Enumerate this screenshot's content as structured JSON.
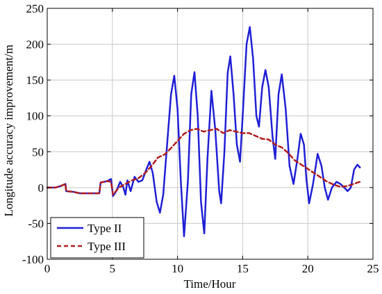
{
  "chart_data": {
    "type": "line",
    "xlabel": "Time/Hour",
    "ylabel": "Longitude accuracy improvement/m",
    "xlim": [
      0,
      25
    ],
    "ylim": [
      -100,
      250
    ],
    "xticks": [
      0,
      5,
      10,
      15,
      20,
      25
    ],
    "yticks": [
      -100,
      -50,
      0,
      50,
      100,
      150,
      200,
      250
    ],
    "grid": true,
    "legend_position": "bottom-left",
    "series": [
      {
        "name": "Type II",
        "color": "#1f1fd6",
        "style": "solid",
        "points": [
          [
            0,
            0
          ],
          [
            0.6,
            0
          ],
          [
            1.0,
            2
          ],
          [
            1.4,
            5
          ],
          [
            1.45,
            -5
          ],
          [
            2.0,
            -6
          ],
          [
            2.5,
            -8
          ],
          [
            3.0,
            -8
          ],
          [
            3.5,
            -8
          ],
          [
            4.0,
            -8
          ],
          [
            4.1,
            7
          ],
          [
            4.6,
            9
          ],
          [
            4.9,
            12
          ],
          [
            5.05,
            -12
          ],
          [
            5.3,
            -5
          ],
          [
            5.6,
            8
          ],
          [
            5.85,
            0
          ],
          [
            6.0,
            -10
          ],
          [
            6.15,
            10
          ],
          [
            6.4,
            -5
          ],
          [
            6.7,
            15
          ],
          [
            7.0,
            8
          ],
          [
            7.3,
            10
          ],
          [
            7.6,
            25
          ],
          [
            7.85,
            36
          ],
          [
            8.1,
            20
          ],
          [
            8.4,
            -20
          ],
          [
            8.65,
            -35
          ],
          [
            8.9,
            -10
          ],
          [
            9.2,
            60
          ],
          [
            9.5,
            130
          ],
          [
            9.75,
            156
          ],
          [
            10.0,
            110
          ],
          [
            10.25,
            10
          ],
          [
            10.5,
            -68
          ],
          [
            10.8,
            10
          ],
          [
            11.05,
            130
          ],
          [
            11.3,
            161
          ],
          [
            11.55,
            100
          ],
          [
            11.8,
            -20
          ],
          [
            12.05,
            -64
          ],
          [
            12.3,
            40
          ],
          [
            12.6,
            135
          ],
          [
            12.9,
            80
          ],
          [
            13.2,
            -5
          ],
          [
            13.35,
            -22
          ],
          [
            13.6,
            50
          ],
          [
            13.85,
            160
          ],
          [
            14.05,
            183
          ],
          [
            14.3,
            130
          ],
          [
            14.55,
            60
          ],
          [
            14.8,
            36
          ],
          [
            15.0,
            100
          ],
          [
            15.3,
            200
          ],
          [
            15.55,
            224
          ],
          [
            15.8,
            180
          ],
          [
            16.05,
            100
          ],
          [
            16.25,
            85
          ],
          [
            16.5,
            140
          ],
          [
            16.75,
            164
          ],
          [
            17.0,
            140
          ],
          [
            17.3,
            70
          ],
          [
            17.5,
            40
          ],
          [
            17.75,
            130
          ],
          [
            18.0,
            158
          ],
          [
            18.3,
            110
          ],
          [
            18.6,
            30
          ],
          [
            18.9,
            5
          ],
          [
            19.2,
            40
          ],
          [
            19.45,
            75
          ],
          [
            19.7,
            60
          ],
          [
            19.9,
            10
          ],
          [
            20.1,
            -22
          ],
          [
            20.4,
            5
          ],
          [
            20.75,
            47
          ],
          [
            21.05,
            30
          ],
          [
            21.3,
            0
          ],
          [
            21.55,
            -17
          ],
          [
            21.85,
            0
          ],
          [
            22.2,
            8
          ],
          [
            22.5,
            5
          ],
          [
            22.8,
            0
          ],
          [
            23.05,
            -5
          ],
          [
            23.3,
            0
          ],
          [
            23.55,
            25
          ],
          [
            23.8,
            32
          ],
          [
            24.0,
            28
          ]
        ]
      },
      {
        "name": "Type III",
        "color": "#b01c1c",
        "style": "dashed",
        "points": [
          [
            0,
            0
          ],
          [
            0.6,
            0
          ],
          [
            1.0,
            2
          ],
          [
            1.4,
            5
          ],
          [
            1.45,
            -5
          ],
          [
            2.0,
            -6
          ],
          [
            2.5,
            -8
          ],
          [
            3.0,
            -8
          ],
          [
            3.5,
            -8
          ],
          [
            4.0,
            -8
          ],
          [
            4.1,
            7
          ],
          [
            4.6,
            9
          ],
          [
            4.9,
            8
          ],
          [
            5.05,
            -10
          ],
          [
            5.5,
            0
          ],
          [
            6.0,
            5
          ],
          [
            6.5,
            10
          ],
          [
            7.0,
            13
          ],
          [
            7.5,
            20
          ],
          [
            8.0,
            30
          ],
          [
            8.5,
            42
          ],
          [
            9.0,
            46
          ],
          [
            9.5,
            55
          ],
          [
            10.0,
            65
          ],
          [
            10.5,
            75
          ],
          [
            11.0,
            80
          ],
          [
            11.5,
            82
          ],
          [
            12.0,
            78
          ],
          [
            12.5,
            80
          ],
          [
            13.0,
            82
          ],
          [
            13.5,
            76
          ],
          [
            14.0,
            80
          ],
          [
            14.5,
            78
          ],
          [
            15.0,
            76
          ],
          [
            15.5,
            76
          ],
          [
            16.0,
            72
          ],
          [
            16.5,
            68
          ],
          [
            17.0,
            67
          ],
          [
            17.5,
            60
          ],
          [
            18.0,
            56
          ],
          [
            18.5,
            48
          ],
          [
            19.0,
            38
          ],
          [
            19.5,
            32
          ],
          [
            20.0,
            26
          ],
          [
            20.5,
            20
          ],
          [
            21.0,
            14
          ],
          [
            21.5,
            8
          ],
          [
            22.0,
            4
          ],
          [
            22.5,
            1
          ],
          [
            23.0,
            2
          ],
          [
            23.5,
            5
          ],
          [
            24.0,
            8
          ]
        ]
      }
    ]
  }
}
